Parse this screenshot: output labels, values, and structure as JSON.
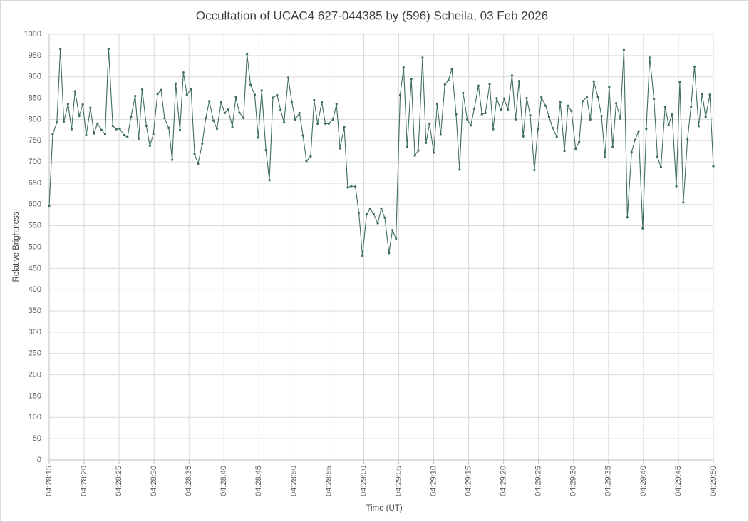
{
  "chart_data": {
    "type": "line",
    "title": "Occultation of UCAC4 627-044385 by (596) Scheila, 03 Feb 2026",
    "x_label": "Time (UT)",
    "y_label": "Relative Brightness",
    "color": "#3e6e5a",
    "grid": true,
    "markers": true,
    "xlim": [
      16095,
      16190
    ],
    "xticks": [
      {
        "value": 16095,
        "label": "04:28:15"
      },
      {
        "value": 16100,
        "label": "04:28:20"
      },
      {
        "value": 16105,
        "label": "04:28:25"
      },
      {
        "value": 16110,
        "label": "04:28:30"
      },
      {
        "value": 16115,
        "label": "04:28:35"
      },
      {
        "value": 16120,
        "label": "04:28:40"
      },
      {
        "value": 16125,
        "label": "04:28:45"
      },
      {
        "value": 16130,
        "label": "04:28:50"
      },
      {
        "value": 16135,
        "label": "04:28:55"
      },
      {
        "value": 16140,
        "label": "04:29:00"
      },
      {
        "value": 16145,
        "label": "04:29:05"
      },
      {
        "value": 16150,
        "label": "04:29:10"
      },
      {
        "value": 16155,
        "label": "04:29:15"
      },
      {
        "value": 16160,
        "label": "04:29:20"
      },
      {
        "value": 16165,
        "label": "04:29:25"
      },
      {
        "value": 16170,
        "label": "04:29:30"
      },
      {
        "value": 16175,
        "label": "04:29:35"
      },
      {
        "value": 16180,
        "label": "04:29:40"
      },
      {
        "value": 16185,
        "label": "04:29:45"
      },
      {
        "value": 16190,
        "label": "04:29:50"
      }
    ],
    "ylim": [
      0,
      1000
    ],
    "yticks": [
      0,
      50,
      100,
      150,
      200,
      250,
      300,
      350,
      400,
      450,
      500,
      550,
      600,
      650,
      700,
      750,
      800,
      850,
      900,
      950,
      1000
    ],
    "x": [
      16095.0,
      16095.5,
      16096.1,
      16096.6,
      16097.1,
      16097.7,
      16098.2,
      16098.7,
      16099.3,
      16099.8,
      16100.3,
      16100.9,
      16101.4,
      16101.9,
      16102.5,
      16103.0,
      16103.5,
      16104.1,
      16104.6,
      16105.1,
      16105.7,
      16106.2,
      16106.7,
      16107.3,
      16107.8,
      16108.3,
      16108.9,
      16109.4,
      16109.9,
      16110.5,
      16111.0,
      16111.5,
      16112.1,
      16112.6,
      16113.1,
      16113.7,
      16114.2,
      16114.7,
      16115.3,
      16115.8,
      16116.3,
      16116.9,
      16117.4,
      16117.9,
      16118.5,
      16119.0,
      16119.6,
      16120.1,
      16120.6,
      16121.2,
      16121.7,
      16122.2,
      16122.8,
      16123.3,
      16123.8,
      16124.4,
      16124.9,
      16125.4,
      16126.0,
      16126.5,
      16127.0,
      16127.6,
      16128.1,
      16128.6,
      16129.2,
      16129.7,
      16130.2,
      16130.8,
      16131.3,
      16131.8,
      16132.4,
      16132.9,
      16133.4,
      16134.0,
      16134.5,
      16135.0,
      16135.6,
      16136.1,
      16136.6,
      16137.2,
      16137.7,
      16138.2,
      16138.8,
      16139.3,
      16139.8,
      16140.4,
      16140.9,
      16141.4,
      16142.0,
      16142.5,
      16143.0,
      16143.6,
      16144.1,
      16144.6,
      16145.2,
      16145.7,
      16146.2,
      16146.8,
      16147.3,
      16147.8,
      16148.4,
      16148.9,
      16149.4,
      16150.0,
      16150.5,
      16151.0,
      16151.6,
      16152.1,
      16152.6,
      16153.2,
      16153.7,
      16154.2,
      16154.8,
      16155.3,
      16155.8,
      16156.4,
      16156.9,
      16157.4,
      16158.0,
      16158.5,
      16159.0,
      16159.6,
      16160.1,
      16160.6,
      16161.2,
      16161.7,
      16162.2,
      16162.8,
      16163.3,
      16163.8,
      16164.4,
      16164.9,
      16165.4,
      16166.0,
      16166.5,
      16167.0,
      16167.6,
      16168.1,
      16168.7,
      16169.2,
      16169.7,
      16170.3,
      16170.8,
      16171.3,
      16171.9,
      16172.4,
      16172.9,
      16173.5,
      16174.0,
      16174.5,
      16175.1,
      16175.6,
      16176.1,
      16176.7,
      16177.2,
      16177.7,
      16178.3,
      16178.8,
      16179.3,
      16179.9,
      16180.4,
      16180.9,
      16181.5,
      16182.0,
      16182.5,
      16183.1,
      16183.6,
      16184.1,
      16184.7,
      16185.2,
      16185.7,
      16186.3,
      16186.8,
      16187.3,
      16187.9,
      16188.4,
      16188.9,
      16189.5,
      16190.0
    ],
    "values": [
      597,
      765,
      793,
      965,
      795,
      836,
      777,
      866,
      808,
      835,
      763,
      827,
      767,
      790,
      775,
      765,
      965,
      785,
      777,
      778,
      763,
      758,
      806,
      855,
      755,
      870,
      785,
      738,
      765,
      860,
      869,
      803,
      780,
      705,
      884,
      775,
      910,
      858,
      871,
      718,
      696,
      743,
      803,
      843,
      797,
      778,
      840,
      815,
      823,
      783,
      852,
      816,
      803,
      953,
      881,
      858,
      757,
      868,
      728,
      657,
      851,
      857,
      822,
      793,
      898,
      841,
      800,
      815,
      762,
      702,
      713,
      845,
      790,
      840,
      790,
      790,
      800,
      836,
      732,
      782,
      640,
      643,
      642,
      580,
      480,
      577,
      590,
      578,
      556,
      591,
      569,
      486,
      540,
      520,
      857,
      922,
      735,
      895,
      715,
      727,
      945,
      745,
      790,
      722,
      836,
      764,
      882,
      892,
      918,
      812,
      682,
      862,
      800,
      786,
      825,
      879,
      812,
      815,
      883,
      777,
      850,
      822,
      849,
      823,
      903,
      800,
      890,
      760,
      850,
      810,
      681,
      777,
      852,
      832,
      806,
      780,
      759,
      840,
      726,
      832,
      820,
      731,
      747,
      843,
      852,
      800,
      889,
      852,
      808,
      711,
      876,
      735,
      838,
      802,
      963,
      570,
      723,
      752,
      772,
      544,
      778,
      945,
      848,
      712,
      688,
      830,
      787,
      812,
      643,
      888,
      605,
      753,
      830,
      924,
      784,
      860,
      806,
      858,
      690
    ]
  }
}
